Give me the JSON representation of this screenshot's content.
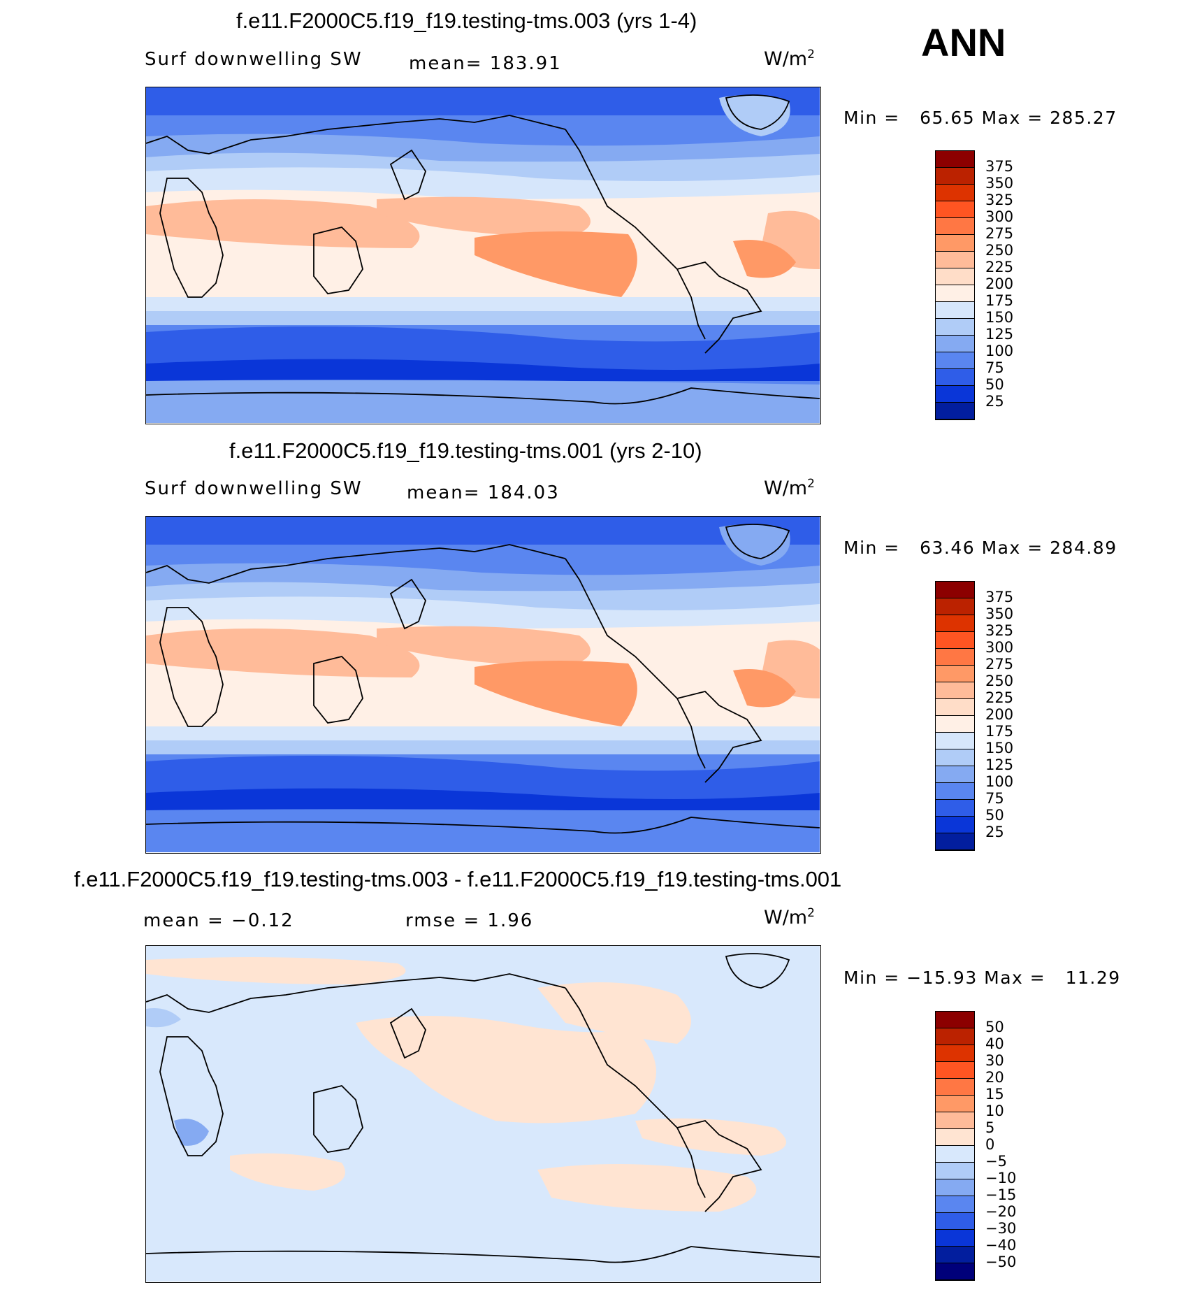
{
  "season": "ANN",
  "units_base": "W/m",
  "units_sup": "2",
  "panels": [
    {
      "title": "f.e11.F2000C5.f19_f19.testing-tms.003 (yrs 1-4)",
      "field_label": "Surf downwelling SW",
      "stat1": "mean= 183.91",
      "stat2": "",
      "minmax": "Min =   65.65 Max = 285.27",
      "map_kind": "absolute"
    },
    {
      "title": "f.e11.F2000C5.f19_f19.testing-tms.001 (yrs 2-10)",
      "field_label": "Surf downwelling SW",
      "stat1": "mean= 184.03",
      "stat2": "",
      "minmax": "Min =   63.46 Max = 284.89",
      "map_kind": "absolute"
    },
    {
      "title": "f.e11.F2000C5.f19_f19.testing-tms.003 - f.e11.F2000C5.f19_f19.testing-tms.001",
      "field_label": "",
      "stat1": "mean =   −0.12",
      "stat2": "rmse =    1.96",
      "minmax": "Min = −15.93 Max =   11.29",
      "map_kind": "difference"
    }
  ],
  "colorbars": {
    "absolute": {
      "labels": [
        "375",
        "350",
        "325",
        "300",
        "275",
        "250",
        "225",
        "200",
        "175",
        "150",
        "125",
        "100",
        "75",
        "50",
        "25"
      ],
      "colors": [
        "#8c0000",
        "#bb2200",
        "#dd3300",
        "#ff5522",
        "#ff7744",
        "#ff9966",
        "#ffbb99",
        "#ffddc8",
        "#fff0e6",
        "#d6e6fb",
        "#b0ccf7",
        "#85aaf2",
        "#5a86f0",
        "#2f5de8",
        "#0a36d8",
        "#021e9e"
      ]
    },
    "difference": {
      "labels": [
        "50",
        "40",
        "30",
        "20",
        "15",
        "10",
        "5",
        "0",
        "−5",
        "−10",
        "−15",
        "−20",
        "−30",
        "−40",
        "−50"
      ],
      "colors": [
        "#8c0000",
        "#bb2200",
        "#dd3300",
        "#ff5522",
        "#ff7744",
        "#ff9966",
        "#ffbb99",
        "#ffe4d2",
        "#d8e8fc",
        "#b0ccf7",
        "#85aaf2",
        "#5a86f0",
        "#2f5de8",
        "#0a36d8",
        "#021e9e",
        "#00007a"
      ]
    }
  }
}
